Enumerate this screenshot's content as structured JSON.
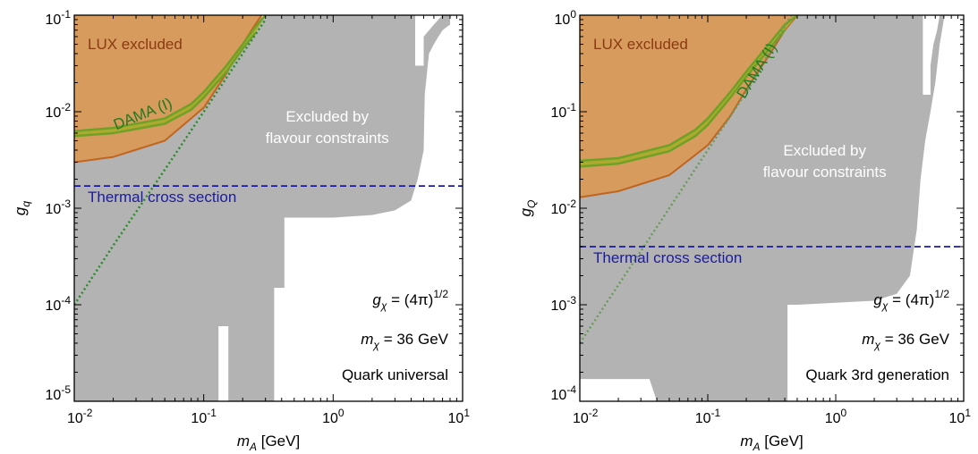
{
  "chart_data": [
    {
      "type": "area",
      "xlabel": "m_A [GeV]",
      "ylabel": "g_q",
      "xscale": "log",
      "yscale": "log",
      "xlim": [
        0.01,
        10
      ],
      "ylim": [
        1e-05,
        0.1
      ],
      "x_tick_labels": [
        "10^-2",
        "10^-1",
        "10^0",
        "10^1"
      ],
      "y_tick_labels": [
        "10^-5",
        "10^-4",
        "10^-3",
        "10^-2",
        "10^-1"
      ],
      "colors": {
        "flavour": "#b3b3b3",
        "lux": "#d79b5e",
        "lux_edge": "#c0651f",
        "dama": "#a9ad2a",
        "dama_edge": "#6fa126",
        "thermal": "#1a1aa6",
        "dama_line": "#2a8a2a"
      },
      "labels": {
        "lux": "LUX excluded",
        "dama": "DAMA (I)",
        "flavour_line1": "Excluded by",
        "flavour_line2": "flavour constraints",
        "thermal": "Thermal cross section",
        "coupling_text": "g_χ = (4π)^1/2",
        "mass_text": "m_χ = 36 GeV",
        "scenario": "Quark universal"
      },
      "series": [
        {
          "name": "Thermal cross section",
          "x": [
            0.01,
            10
          ],
          "y": [
            0.0017,
            0.0017
          ]
        },
        {
          "x": [
            0.01,
            0.02,
            0.05,
            0.1,
            0.2,
            0.3
          ],
          "y": [
            0.0001,
            0.00041,
            0.0025,
            0.01,
            0.04,
            0.09
          ]
        },
        {
          "x": [
            0.01,
            0.02,
            0.05,
            0.1,
            0.15,
            0.2,
            0.25,
            0.28
          ],
          "y": [
            0.003,
            0.0034,
            0.005,
            0.011,
            0.025,
            0.05,
            0.08,
            0.1
          ]
        },
        {
          "x": [
            0.01,
            0.02,
            0.05,
            0.08,
            0.1,
            0.15,
            0.2,
            0.25,
            0.3
          ],
          "y": [
            0.0063,
            0.0068,
            0.0085,
            0.012,
            0.016,
            0.03,
            0.05,
            0.075,
            0.1
          ]
        },
        {
          "x": [
            0.01,
            0.02,
            0.05,
            0.08,
            0.1,
            0.15,
            0.2,
            0.25
          ],
          "y": [
            0.0056,
            0.006,
            0.0075,
            0.0105,
            0.014,
            0.026,
            0.045,
            0.065
          ]
        }
      ],
      "flavour_region": {
        "x": [
          0.01,
          0.13,
          0.13,
          0.155,
          0.155,
          0.35,
          0.35,
          0.35,
          0.42,
          0.42,
          0.5,
          1,
          2,
          3,
          4,
          4.5,
          5,
          5.1,
          5.5,
          6,
          6.5,
          7,
          8,
          8,
          7,
          6.5,
          6,
          5,
          5,
          4.3,
          4.3,
          0.3,
          0.01
        ],
        "y": [
          1e-05,
          1e-05,
          6e-05,
          6e-05,
          1e-05,
          1e-05,
          0.00015,
          0.00015,
          0.00015,
          0.0008,
          0.0008,
          0.0008,
          0.00085,
          0.00095,
          0.0012,
          0.002,
          0.004,
          0.015,
          0.04,
          0.05,
          0.06,
          0.07,
          0.08,
          0.1,
          0.1,
          0.09,
          0.08,
          0.06,
          0.03,
          0.03,
          0.1,
          0.1,
          0.01
        ]
      }
    },
    {
      "type": "area",
      "xlabel": "m_A [GeV]",
      "ylabel": "g_Q",
      "xscale": "log",
      "yscale": "log",
      "xlim": [
        0.01,
        10
      ],
      "ylim": [
        0.0001,
        1
      ],
      "x_tick_labels": [
        "10^-2",
        "10^-1",
        "10^0",
        "10^1"
      ],
      "y_tick_labels": [
        "10^-4",
        "10^-3",
        "10^-2",
        "10^-1",
        "10^0"
      ],
      "colors": {
        "flavour": "#b3b3b3",
        "lux": "#d79b5e",
        "lux_edge": "#c0651f",
        "dama": "#a9ad2a",
        "dama_edge": "#6fa126",
        "thermal": "#1a1aa6",
        "dama_line": "#6a9a5a"
      },
      "labels": {
        "lux": "LUX excluded",
        "dama": "DAMA (I)",
        "flavour_line1": "Excluded by",
        "flavour_line2": "flavour constraints",
        "thermal": "Thermal cross section",
        "coupling_text": "g_χ = (4π)^1/2",
        "mass_text": "m_χ = 36 GeV",
        "scenario": "Quark 3rd generation"
      },
      "series": [
        {
          "name": "Thermal cross section",
          "x": [
            0.01,
            10
          ],
          "y": [
            0.004,
            0.004
          ]
        },
        {
          "x": [
            0.01,
            0.02,
            0.05,
            0.1,
            0.2,
            0.45
          ],
          "y": [
            0.0004,
            0.0016,
            0.01,
            0.04,
            0.16,
            1
          ]
        },
        {
          "x": [
            0.01,
            0.02,
            0.05,
            0.1,
            0.15,
            0.2,
            0.3,
            0.4,
            0.5
          ],
          "y": [
            0.013,
            0.015,
            0.022,
            0.045,
            0.09,
            0.17,
            0.38,
            0.7,
            1
          ]
        },
        {
          "x": [
            0.01,
            0.02,
            0.05,
            0.08,
            0.1,
            0.15,
            0.2,
            0.3,
            0.4,
            0.5
          ],
          "y": [
            0.031,
            0.033,
            0.045,
            0.065,
            0.085,
            0.16,
            0.26,
            0.5,
            0.8,
            1
          ]
        },
        {
          "x": [
            0.01,
            0.02,
            0.05,
            0.08,
            0.1,
            0.15,
            0.2,
            0.3,
            0.4
          ],
          "y": [
            0.027,
            0.029,
            0.039,
            0.056,
            0.073,
            0.14,
            0.23,
            0.44,
            0.7
          ]
        }
      ],
      "flavour_region": {
        "x": [
          0.01,
          0.02,
          0.035,
          0.04,
          0.42,
          0.42,
          0.42,
          0.5,
          1,
          2,
          3,
          3.8,
          4.3,
          4.6,
          5,
          5.5,
          6,
          6.5,
          7,
          7,
          6.5,
          6.2,
          5.8,
          5.5,
          5.5,
          4.8,
          4.8,
          0.45,
          0.01
        ],
        "y": [
          0.00017,
          0.00017,
          0.00017,
          0.0001,
          0.0001,
          0.001,
          0.001,
          0.001,
          0.00105,
          0.0011,
          0.0013,
          0.002,
          0.006,
          0.02,
          0.05,
          0.1,
          0.2,
          0.5,
          0.9,
          1,
          1,
          0.7,
          0.5,
          0.3,
          0.15,
          0.15,
          1,
          1,
          0.12
        ]
      }
    }
  ]
}
